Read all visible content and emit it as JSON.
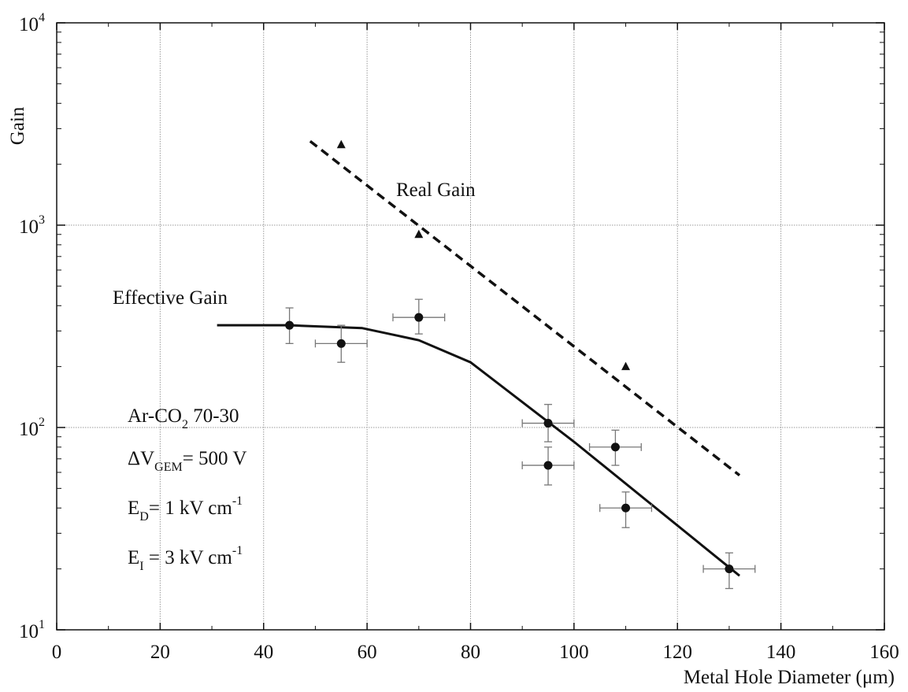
{
  "chart_data": {
    "type": "scatter",
    "title": "",
    "xlabel": "Metal Hole Diameter (μm)",
    "ylabel": "Gain",
    "xlim": [
      0,
      160
    ],
    "ylim": [
      10,
      10000
    ],
    "y_scale": "log",
    "grid": true,
    "x_ticks": [
      "0",
      "20",
      "40",
      "60",
      "80",
      "100",
      "120",
      "140",
      "160"
    ],
    "y_ticks": [
      {
        "value": 10,
        "base": "10",
        "exp": "1"
      },
      {
        "value": 100,
        "base": "10",
        "exp": "2"
      },
      {
        "value": 1000,
        "base": "10",
        "exp": "3"
      },
      {
        "value": 10000,
        "base": "10",
        "exp": "4"
      }
    ],
    "series": [
      {
        "name": "Effective Gain",
        "marker": "circle",
        "points": [
          {
            "x": 45,
            "y": 320,
            "xerr": 0,
            "ylo": 260,
            "yhi": 390
          },
          {
            "x": 55,
            "y": 260,
            "xerr": 5,
            "ylo": 210,
            "yhi": 320
          },
          {
            "x": 70,
            "y": 350,
            "xerr": 5,
            "ylo": 290,
            "yhi": 430
          },
          {
            "x": 95,
            "y": 105,
            "xerr": 5,
            "ylo": 85,
            "yhi": 130
          },
          {
            "x": 95,
            "y": 65,
            "xerr": 5,
            "ylo": 52,
            "yhi": 80
          },
          {
            "x": 108,
            "y": 80,
            "xerr": 5,
            "ylo": 65,
            "yhi": 97
          },
          {
            "x": 110,
            "y": 40,
            "xerr": 5,
            "ylo": 32,
            "yhi": 48
          },
          {
            "x": 130,
            "y": 20,
            "xerr": 5,
            "ylo": 16,
            "yhi": 24
          }
        ],
        "curve": [
          {
            "x": 31,
            "y": 320
          },
          {
            "x": 45,
            "y": 320
          },
          {
            "x": 59,
            "y": 310
          },
          {
            "x": 70,
            "y": 270
          },
          {
            "x": 80,
            "y": 210
          },
          {
            "x": 100,
            "y": 85
          },
          {
            "x": 132,
            "y": 18.5
          }
        ]
      },
      {
        "name": "Real Gain",
        "marker": "triangle",
        "points": [
          {
            "x": 55,
            "y": 2500
          },
          {
            "x": 70,
            "y": 900
          },
          {
            "x": 110,
            "y": 200
          }
        ],
        "fit_line": [
          {
            "x": 49,
            "y": 2600
          },
          {
            "x": 132,
            "y": 58
          }
        ]
      }
    ],
    "annotations": {
      "real_gain_label": "Real Gain",
      "effective_gain_label": "Effective Gain",
      "conditions": [
        {
          "pre": "Ar-CO",
          "sub": "2",
          "post": " 70-30"
        },
        {
          "pre": "ΔV",
          "sub": "GEM",
          "post": "= 500 V"
        },
        {
          "pre": "E",
          "sub": "D",
          "post": "= 1 kV cm",
          "sup": "-1"
        },
        {
          "pre": "E",
          "sub": "I",
          "post": " = 3 kV cm",
          "sup": "-1"
        }
      ]
    }
  }
}
